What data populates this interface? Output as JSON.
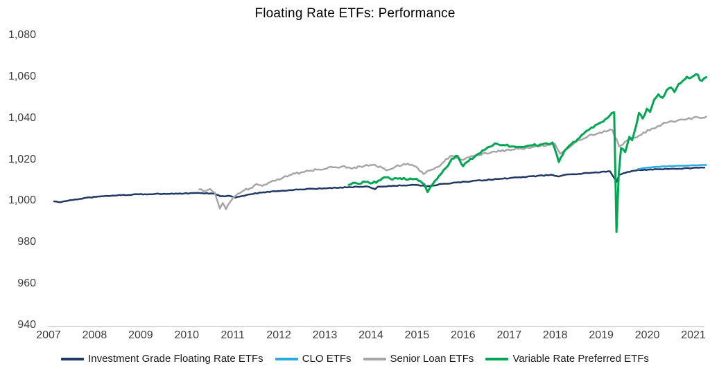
{
  "chart_data": {
    "type": "line",
    "title": "Floating Rate ETFs: Performance",
    "xlabel": "",
    "ylabel": "",
    "grid": false,
    "legend_position": "bottom",
    "x_axis": {
      "min": 2007,
      "max": 2021,
      "ticks": [
        {
          "label": "2007",
          "value": 2007
        },
        {
          "label": "2008",
          "value": 2008
        },
        {
          "label": "2009",
          "value": 2009
        },
        {
          "label": "2010",
          "value": 2010
        },
        {
          "label": "2011",
          "value": 2011
        },
        {
          "label": "2012",
          "value": 2012
        },
        {
          "label": "2013",
          "value": 2013
        },
        {
          "label": "2014",
          "value": 2014
        },
        {
          "label": "2015",
          "value": 2015
        },
        {
          "label": "2016",
          "value": 2016
        },
        {
          "label": "2017",
          "value": 2017
        },
        {
          "label": "2018",
          "value": 2018
        },
        {
          "label": "2019",
          "value": 2019
        },
        {
          "label": "2020",
          "value": 2020
        },
        {
          "label": "2021",
          "value": 2021
        }
      ]
    },
    "y_axis": {
      "min": 940,
      "max": 1080,
      "tick_step": 20,
      "ticks": [
        {
          "label": "1,080",
          "value": 1080
        },
        {
          "label": "1,060",
          "value": 1060
        },
        {
          "label": "1,040",
          "value": 1040
        },
        {
          "label": "1,020",
          "value": 1020
        },
        {
          "label": "1,000",
          "value": 1000
        },
        {
          "label": "980",
          "value": 980
        },
        {
          "label": "960",
          "value": 960
        },
        {
          "label": "940",
          "value": 940
        }
      ]
    },
    "series": [
      {
        "id": "investment-grade-floating-rate-etfs",
        "name": "Investment Grade Floating Rate ETFs",
        "color": "#1F3864",
        "width": 2.5,
        "jitter": 0.2,
        "points": [
          [
            2007.12,
            999.8
          ],
          [
            2007.27,
            999.4
          ],
          [
            2007.45,
            1000.3
          ],
          [
            2007.68,
            1001.0
          ],
          [
            2007.9,
            1001.7
          ],
          [
            2008.2,
            1002.3
          ],
          [
            2008.58,
            1002.8
          ],
          [
            2008.96,
            1003.2
          ],
          [
            2009.41,
            1003.4
          ],
          [
            2009.94,
            1003.6
          ],
          [
            2010.31,
            1003.8
          ],
          [
            2010.61,
            1003.5
          ],
          [
            2010.73,
            1002.2
          ],
          [
            2010.91,
            1002.5
          ],
          [
            2011.06,
            1001.6
          ],
          [
            2011.21,
            1002.4
          ],
          [
            2011.44,
            1003.4
          ],
          [
            2011.67,
            1004.2
          ],
          [
            2011.97,
            1004.8
          ],
          [
            2012.42,
            1005.5
          ],
          [
            2013.02,
            1006.1
          ],
          [
            2013.52,
            1006.7
          ],
          [
            2013.92,
            1007.0
          ],
          [
            2014.09,
            1005.7
          ],
          [
            2014.15,
            1006.9
          ],
          [
            2014.53,
            1007.3
          ],
          [
            2014.98,
            1007.8
          ],
          [
            2015.22,
            1007.1
          ],
          [
            2015.58,
            1008.3
          ],
          [
            2016.18,
            1009.5
          ],
          [
            2016.78,
            1010.6
          ],
          [
            2017.39,
            1011.7
          ],
          [
            2017.94,
            1012.6
          ],
          [
            2018.08,
            1011.8
          ],
          [
            2018.21,
            1012.6
          ],
          [
            2018.74,
            1013.5
          ],
          [
            2019.19,
            1014.3
          ],
          [
            2019.33,
            1009.2
          ],
          [
            2019.39,
            1012.6
          ],
          [
            2019.57,
            1014.0
          ],
          [
            2019.8,
            1015.0
          ],
          [
            2020.25,
            1015.3
          ],
          [
            2020.7,
            1015.6
          ],
          [
            2021.12,
            1016.0
          ],
          [
            2021.24,
            1016.1
          ]
        ]
      },
      {
        "id": "clo-etfs",
        "name": "CLO ETFs",
        "color": "#29ABE2",
        "width": 2.6,
        "jitter": 0.1,
        "points": [
          [
            2019.8,
            1015.4
          ],
          [
            2019.98,
            1016.0
          ],
          [
            2020.17,
            1016.4
          ],
          [
            2020.4,
            1016.7
          ],
          [
            2020.62,
            1016.9
          ],
          [
            2020.85,
            1017.1
          ],
          [
            2021.08,
            1017.2
          ],
          [
            2021.28,
            1017.4
          ]
        ]
      },
      {
        "id": "senior-loan-etfs",
        "name": "Senior Loan ETFs",
        "color": "#A6A6A6",
        "width": 2.5,
        "jitter": 0.55,
        "points": [
          [
            2010.27,
            1005.6
          ],
          [
            2010.4,
            1004.8
          ],
          [
            2010.51,
            1005.8
          ],
          [
            2010.61,
            1004.0
          ],
          [
            2010.72,
            996.3
          ],
          [
            2010.78,
            999.0
          ],
          [
            2010.85,
            996.0
          ],
          [
            2010.96,
            1000.0
          ],
          [
            2011.06,
            1002.4
          ],
          [
            2011.21,
            1004.7
          ],
          [
            2011.37,
            1006.1
          ],
          [
            2011.52,
            1008.2
          ],
          [
            2011.64,
            1007.3
          ],
          [
            2011.82,
            1009.2
          ],
          [
            2011.97,
            1010.5
          ],
          [
            2012.27,
            1012.6
          ],
          [
            2012.57,
            1014.2
          ],
          [
            2012.87,
            1015.2
          ],
          [
            2013.17,
            1016.2
          ],
          [
            2013.43,
            1016.8
          ],
          [
            2013.59,
            1015.6
          ],
          [
            2013.77,
            1016.6
          ],
          [
            2014.08,
            1017.6
          ],
          [
            2014.33,
            1014.8
          ],
          [
            2014.53,
            1016.5
          ],
          [
            2014.71,
            1017.9
          ],
          [
            2014.98,
            1016.6
          ],
          [
            2015.14,
            1013.0
          ],
          [
            2015.31,
            1015.0
          ],
          [
            2015.5,
            1017.0
          ],
          [
            2015.63,
            1020.3
          ],
          [
            2015.76,
            1021.8
          ],
          [
            2016.0,
            1019.8
          ],
          [
            2016.18,
            1021.7
          ],
          [
            2016.48,
            1023.2
          ],
          [
            2016.68,
            1023.9
          ],
          [
            2016.94,
            1024.6
          ],
          [
            2017.24,
            1025.3
          ],
          [
            2017.54,
            1026.1
          ],
          [
            2017.84,
            1027.2
          ],
          [
            2017.99,
            1027.7
          ],
          [
            2018.11,
            1022.8
          ],
          [
            2018.26,
            1025.2
          ],
          [
            2018.47,
            1028.9
          ],
          [
            2018.74,
            1031.8
          ],
          [
            2018.97,
            1033.0
          ],
          [
            2019.24,
            1034.3
          ],
          [
            2019.39,
            1026.2
          ],
          [
            2019.46,
            1027.0
          ],
          [
            2019.57,
            1029.3
          ],
          [
            2019.72,
            1030.5
          ],
          [
            2019.87,
            1032.0
          ],
          [
            2020.1,
            1035.0
          ],
          [
            2020.32,
            1037.0
          ],
          [
            2020.55,
            1038.4
          ],
          [
            2020.77,
            1039.3
          ],
          [
            2021.0,
            1040.2
          ],
          [
            2021.15,
            1040.0
          ],
          [
            2021.28,
            1040.7
          ]
        ]
      },
      {
        "id": "variable-rate-preferred-etfs",
        "name": "Variable Rate Preferred ETFs",
        "color": "#00A651",
        "width": 3,
        "jitter": 0.55,
        "points": [
          [
            2013.52,
            1007.8
          ],
          [
            2013.65,
            1008.8
          ],
          [
            2013.74,
            1008.2
          ],
          [
            2013.88,
            1009.2
          ],
          [
            2014.03,
            1008.6
          ],
          [
            2014.2,
            1010.0
          ],
          [
            2014.33,
            1011.4
          ],
          [
            2014.47,
            1010.3
          ],
          [
            2014.63,
            1011.0
          ],
          [
            2014.8,
            1010.2
          ],
          [
            2014.95,
            1010.6
          ],
          [
            2015.07,
            1009.6
          ],
          [
            2015.16,
            1008.0
          ],
          [
            2015.23,
            1004.3
          ],
          [
            2015.31,
            1007.2
          ],
          [
            2015.43,
            1010.5
          ],
          [
            2015.63,
            1016.0
          ],
          [
            2015.76,
            1020.5
          ],
          [
            2015.88,
            1021.7
          ],
          [
            2016.0,
            1016.8
          ],
          [
            2016.12,
            1019.3
          ],
          [
            2016.33,
            1022.8
          ],
          [
            2016.51,
            1025.4
          ],
          [
            2016.69,
            1027.8
          ],
          [
            2016.87,
            1027.0
          ],
          [
            2017.09,
            1026.3
          ],
          [
            2017.31,
            1026.0
          ],
          [
            2017.51,
            1026.9
          ],
          [
            2017.72,
            1027.3
          ],
          [
            2017.94,
            1028.2
          ],
          [
            2018.08,
            1018.8
          ],
          [
            2018.2,
            1024.2
          ],
          [
            2018.35,
            1027.5
          ],
          [
            2018.53,
            1030.5
          ],
          [
            2018.74,
            1034.5
          ],
          [
            2018.92,
            1037.0
          ],
          [
            2019.09,
            1039.5
          ],
          [
            2019.28,
            1042.8
          ],
          [
            2019.33,
            985.0
          ],
          [
            2019.38,
            1013.0
          ],
          [
            2019.43,
            1025.5
          ],
          [
            2019.52,
            1023.6
          ],
          [
            2019.61,
            1031.0
          ],
          [
            2019.67,
            1029.3
          ],
          [
            2019.76,
            1036.5
          ],
          [
            2019.82,
            1042.5
          ],
          [
            2019.9,
            1039.8
          ],
          [
            2019.99,
            1044.5
          ],
          [
            2020.06,
            1043.0
          ],
          [
            2020.15,
            1049.0
          ],
          [
            2020.24,
            1051.5
          ],
          [
            2020.33,
            1049.8
          ],
          [
            2020.42,
            1053.5
          ],
          [
            2020.51,
            1054.8
          ],
          [
            2020.59,
            1052.6
          ],
          [
            2020.68,
            1056.5
          ],
          [
            2020.77,
            1058.0
          ],
          [
            2020.86,
            1060.0
          ],
          [
            2020.93,
            1059.3
          ],
          [
            2021.02,
            1060.6
          ],
          [
            2021.1,
            1060.9
          ],
          [
            2021.14,
            1058.4
          ],
          [
            2021.19,
            1058.0
          ],
          [
            2021.23,
            1059.2
          ],
          [
            2021.28,
            1059.8
          ]
        ]
      }
    ]
  },
  "colors": {
    "background": "#FFFFFF",
    "axis_line": "#BFBFBF",
    "tick_text": "#3D3D3D",
    "title_text": "#000000"
  }
}
